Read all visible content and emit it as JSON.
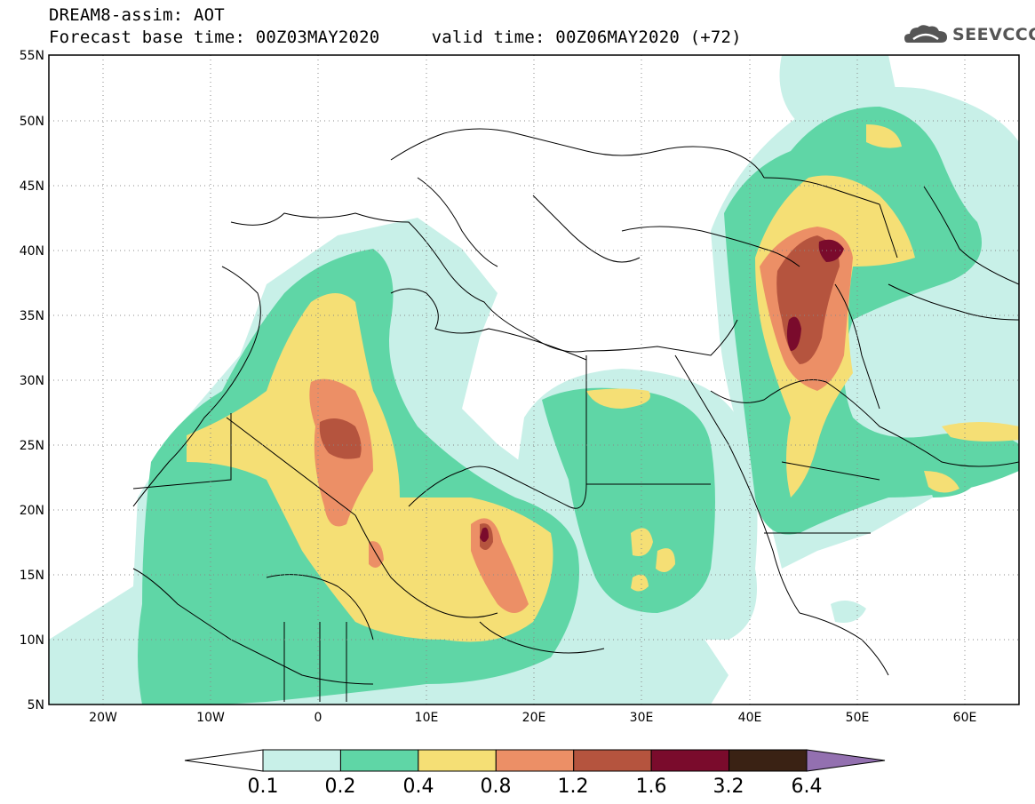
{
  "header": {
    "title": "DREAM8-assim: AOT",
    "subtitle": "Forecast base time: 00Z03MAY2020     valid time: 00Z06MAY2020 (+72)"
  },
  "logo": {
    "text": "SEEVCCC",
    "icon": "cloud-icon"
  },
  "map": {
    "lon_range": [
      -25,
      65
    ],
    "lat_range": [
      5,
      55
    ],
    "grid": "dotted",
    "lat_ticks": [
      "55N",
      "50N",
      "45N",
      "40N",
      "35N",
      "30N",
      "25N",
      "20N",
      "15N",
      "10N",
      "5N"
    ],
    "lon_ticks": [
      "20W",
      "10W",
      "0",
      "10E",
      "20E",
      "30E",
      "40E",
      "50E",
      "60E"
    ]
  },
  "colorbar": {
    "labels": [
      "0.1",
      "0.2",
      "0.4",
      "0.8",
      "1.2",
      "1.6",
      "3.2",
      "6.4"
    ],
    "colors": [
      "#c8f0e8",
      "#5fd6a6",
      "#f5df75",
      "#ec8f66",
      "#b5543e",
      "#7a0b2c",
      "#3a2214",
      "#9370b0"
    ],
    "under_color": "#ffffff"
  }
}
